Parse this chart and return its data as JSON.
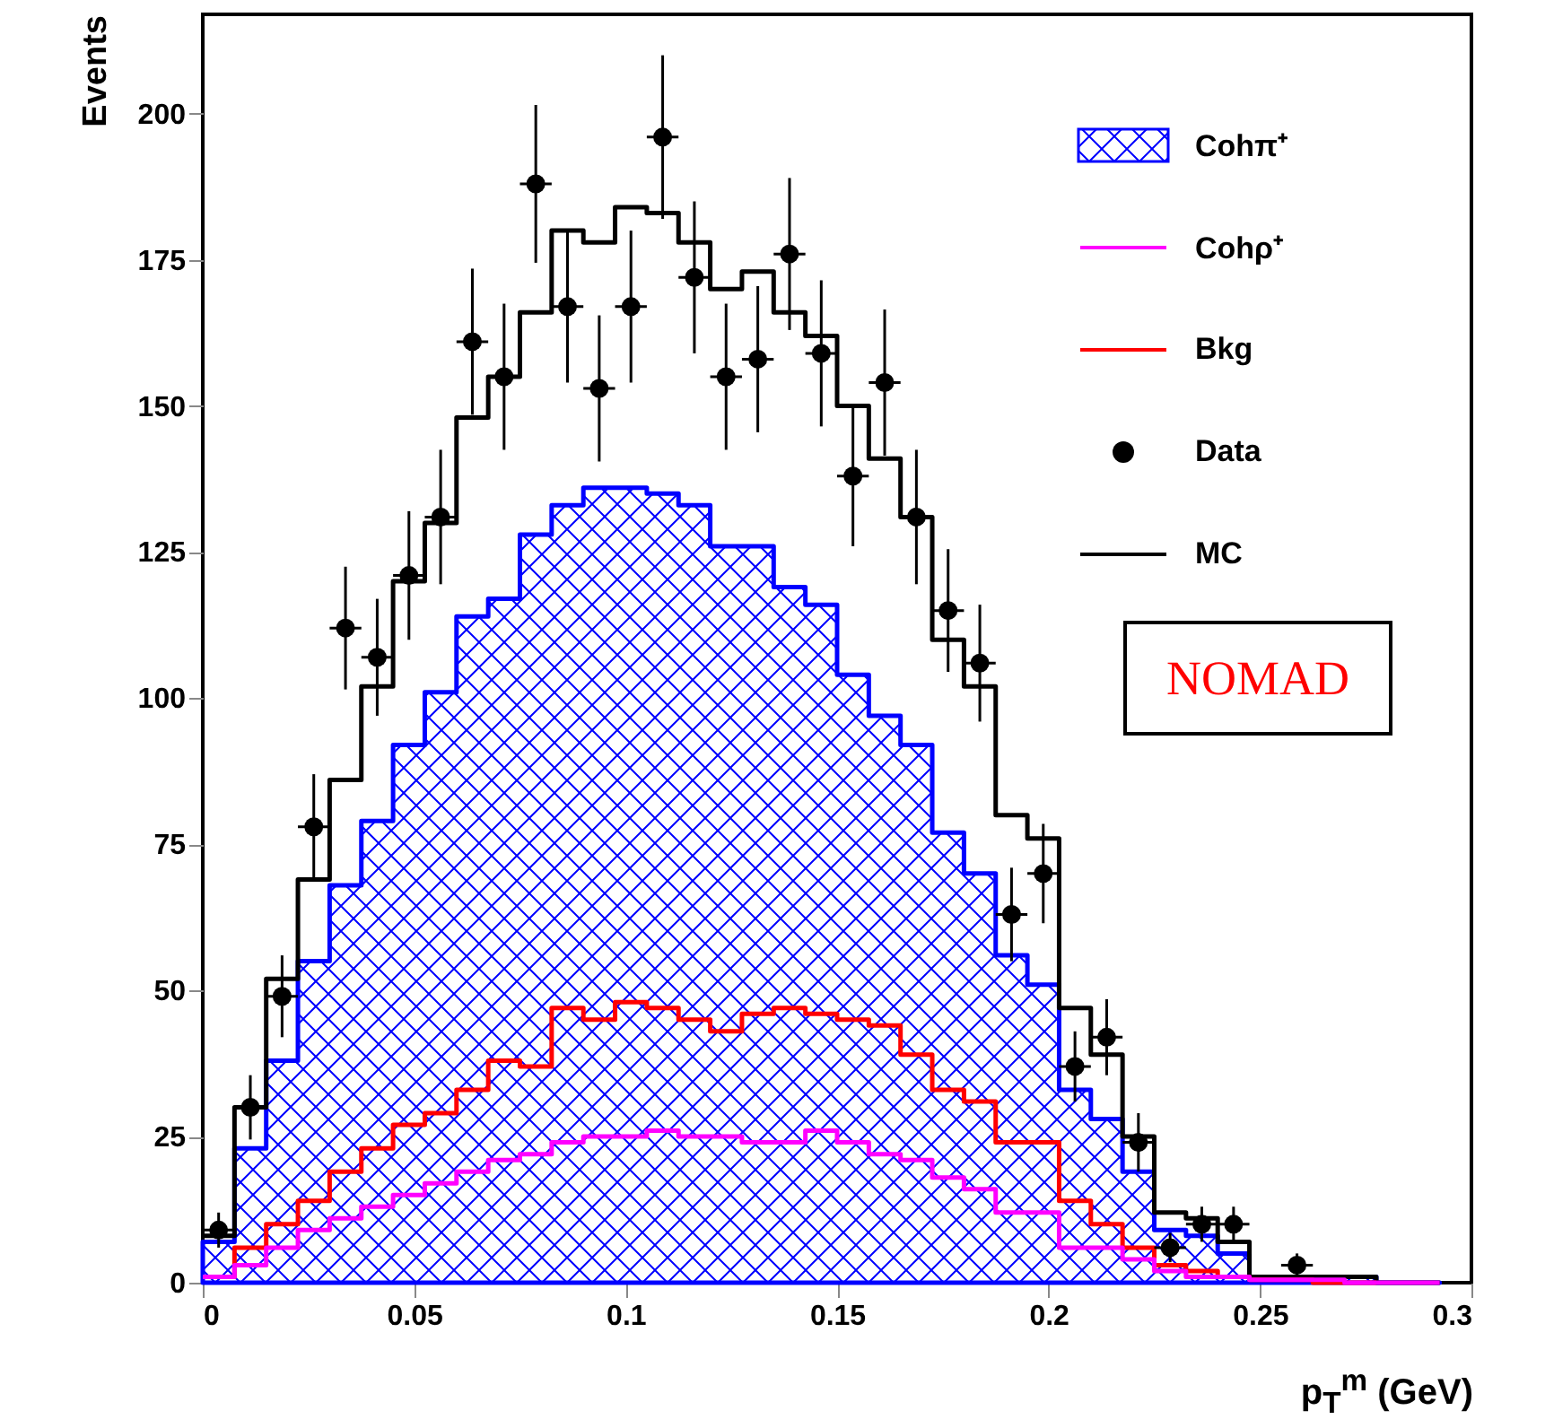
{
  "chart_data": {
    "type": "step",
    "xlabel": "p$_{T}$$^{m}$ (GeV)",
    "ylabel": "Events",
    "xlim": [
      0,
      0.3
    ],
    "xticks": [
      0,
      0.05,
      0.1,
      0.15,
      0.2,
      0.25,
      0.3
    ],
    "ylim": [
      0,
      217
    ],
    "yticks": [
      0,
      25,
      50,
      75,
      100,
      125,
      150,
      175,
      200
    ],
    "grid": false,
    "legend": "top right",
    "annotations": [
      "NOMAD"
    ],
    "x": [
      0,
      0.0075,
      0.015,
      0.0225,
      0.03,
      0.0375,
      0.045,
      0.0525,
      0.06,
      0.0675,
      0.075,
      0.0825,
      0.09,
      0.0975,
      0.105,
      0.1125,
      0.12,
      0.1275,
      0.135,
      0.1425,
      0.15,
      0.1575,
      0.165,
      0.1725,
      0.18,
      0.1875,
      0.195,
      0.2025,
      0.21,
      0.2175,
      0.225,
      0.2325,
      0.24,
      0.2475,
      0.255,
      0.2625,
      0.27,
      0.2775,
      0.285,
      0.2925
    ],
    "series": [
      {
        "name": "Cohπ⁺",
        "type": "area",
        "color": "#0000ff",
        "values": [
          7,
          23,
          38,
          55,
          68,
          79,
          92,
          101,
          114,
          117,
          128,
          133,
          136,
          136,
          135,
          133,
          126,
          126,
          119,
          116,
          104,
          97,
          92,
          77,
          70,
          56,
          51,
          33,
          28,
          19,
          9,
          8,
          5,
          1,
          1,
          1,
          1,
          0,
          0,
          0
        ]
      },
      {
        "name": "Cohρ⁺",
        "type": "step",
        "color": "#ff00ff",
        "values": [
          1,
          3,
          6,
          9,
          11,
          13,
          15,
          17,
          19,
          21,
          22,
          24,
          25,
          25,
          26,
          25,
          25,
          24,
          24,
          26,
          24,
          22,
          21,
          18,
          16,
          12,
          12,
          6,
          6,
          4,
          2,
          1,
          1,
          0.5,
          0.5,
          0.5,
          0,
          0,
          0,
          0
        ]
      },
      {
        "name": "Bkg",
        "type": "step",
        "color": "#ff0000",
        "values": [
          1,
          6,
          10,
          14,
          19,
          23,
          27,
          29,
          33,
          38,
          37,
          47,
          45,
          48,
          47,
          45,
          43,
          46,
          47,
          46,
          45,
          44,
          39,
          33,
          31,
          24,
          24,
          14,
          10,
          6,
          3,
          2,
          1,
          0.5,
          0.5,
          0,
          0,
          0,
          null,
          null
        ]
      },
      {
        "name": "Data",
        "type": "scatter",
        "color": "#000000",
        "marker": "circle",
        "x": [
          0.00375,
          0.01125,
          0.01875,
          0.02625,
          0.03375,
          0.04125,
          0.04875,
          0.05625,
          0.06375,
          0.07125,
          0.07875,
          0.08625,
          0.09375,
          0.10125,
          0.10875,
          0.11625,
          0.12375,
          0.13125,
          0.13875,
          0.14625,
          0.15375,
          0.16125,
          0.16875,
          0.17625,
          0.18375,
          0.19125,
          0.19875,
          0.20625,
          0.21375,
          0.22125,
          0.22875,
          0.23625,
          0.24375,
          0.25875
        ],
        "values": [
          9,
          30,
          49,
          78,
          112,
          107,
          121,
          131,
          161,
          155,
          188,
          167,
          153,
          167,
          196,
          172,
          155,
          158,
          176,
          159,
          138,
          154,
          131,
          115,
          106,
          63,
          70,
          37,
          42,
          24,
          6,
          10,
          10,
          3
        ],
        "errors": [
          3,
          5.5,
          7,
          9,
          10.5,
          10,
          11,
          11.5,
          12.5,
          12.5,
          13.5,
          13,
          12.5,
          13,
          14,
          13,
          12.5,
          12.5,
          13,
          12.5,
          12,
          12.5,
          11.5,
          10.5,
          10,
          8,
          8.5,
          6,
          6.5,
          5,
          2.5,
          3,
          3,
          2
        ],
        "xerrors": [
          0.00375,
          0.00375,
          0.00375,
          0.00375,
          0.00375,
          0.00375,
          0.00375,
          0.00375,
          0.00375,
          0.00375,
          0.00375,
          0.00375,
          0.00375,
          0.00375,
          0.00375,
          0.00375,
          0.00375,
          0.00375,
          0.00375,
          0.00375,
          0.00375,
          0.00375,
          0.00375,
          0.00375,
          0.00375,
          0.00375,
          0.00375,
          0.00375,
          0.00375,
          0.00375,
          0.00375,
          0.00375,
          0.00375,
          0.00375
        ]
      },
      {
        "name": "MC",
        "type": "step",
        "color": "#000000",
        "values": [
          8,
          30,
          52,
          69,
          86,
          102,
          120,
          130,
          148,
          155,
          166,
          180,
          178,
          184,
          183,
          178,
          170,
          173,
          166,
          162,
          150,
          141,
          131,
          110,
          102,
          80,
          76,
          47,
          39,
          25,
          12,
          11,
          7,
          1,
          1,
          1,
          1,
          0,
          0,
          0
        ]
      }
    ]
  }
}
